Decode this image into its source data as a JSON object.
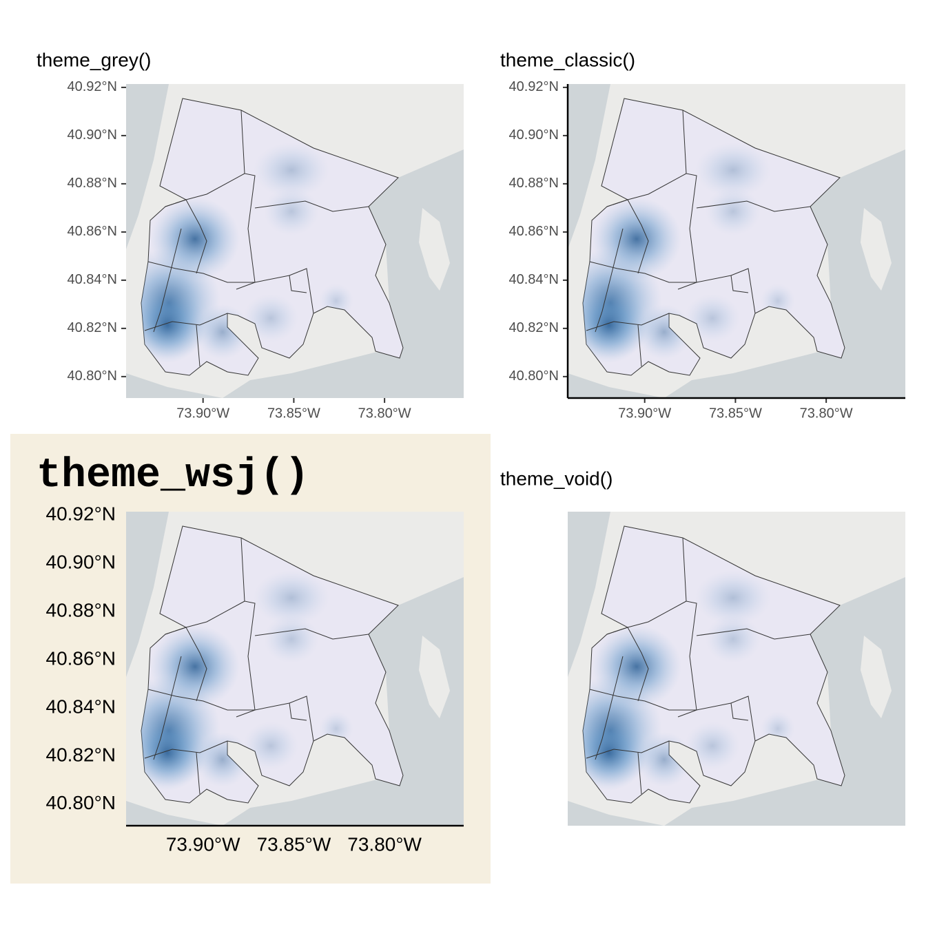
{
  "chart_data": [
    {
      "type": "map",
      "title": "theme_grey()",
      "axis_lines": [],
      "tick_marks": true,
      "xlim": [
        -73.9424,
        -73.7564
      ],
      "ylim": [
        40.7911,
        40.9214
      ],
      "xticks": [
        {
          "value": -73.9,
          "label": "73.90°W"
        },
        {
          "value": -73.85,
          "label": "73.85°W"
        },
        {
          "value": -73.8,
          "label": "73.80°W"
        }
      ],
      "yticks": [
        {
          "value": 40.8,
          "label": "40.80°N"
        },
        {
          "value": 40.82,
          "label": "40.82°N"
        },
        {
          "value": 40.84,
          "label": "40.84°N"
        },
        {
          "value": 40.86,
          "label": "40.86°N"
        },
        {
          "value": 40.88,
          "label": "40.88°N"
        },
        {
          "value": 40.9,
          "label": "40.90°N"
        },
        {
          "value": 40.92,
          "label": "40.92°N"
        }
      ]
    },
    {
      "type": "map",
      "title": "theme_classic()",
      "axis_lines": [
        "left",
        "bottom"
      ],
      "tick_marks": true,
      "xlim": [
        -73.9424,
        -73.7564
      ],
      "ylim": [
        40.7911,
        40.9214
      ],
      "xticks": [
        {
          "value": -73.9,
          "label": "73.90°W"
        },
        {
          "value": -73.85,
          "label": "73.85°W"
        },
        {
          "value": -73.8,
          "label": "73.80°W"
        }
      ],
      "yticks": [
        {
          "value": 40.8,
          "label": "40.80°N"
        },
        {
          "value": 40.82,
          "label": "40.82°N"
        },
        {
          "value": 40.84,
          "label": "40.84°N"
        },
        {
          "value": 40.86,
          "label": "40.86°N"
        },
        {
          "value": 40.88,
          "label": "40.88°N"
        },
        {
          "value": 40.9,
          "label": "40.90°N"
        },
        {
          "value": 40.92,
          "label": "40.92°N"
        }
      ]
    },
    {
      "type": "map",
      "title": "theme_wsj()",
      "axis_lines": [
        "bottom"
      ],
      "tick_marks": false,
      "background": "#f5efe0",
      "xlim": [
        -73.9424,
        -73.7564
      ],
      "ylim": [
        40.7911,
        40.9214
      ],
      "xticks": [
        {
          "value": -73.9,
          "label": "73.90°W"
        },
        {
          "value": -73.85,
          "label": "73.85°W"
        },
        {
          "value": -73.8,
          "label": "73.80°W"
        }
      ],
      "yticks": [
        {
          "value": 40.8,
          "label": "40.80°N"
        },
        {
          "value": 40.82,
          "label": "40.82°N"
        },
        {
          "value": 40.84,
          "label": "40.84°N"
        },
        {
          "value": 40.86,
          "label": "40.86°N"
        },
        {
          "value": 40.88,
          "label": "40.88°N"
        },
        {
          "value": 40.9,
          "label": "40.90°N"
        },
        {
          "value": 40.92,
          "label": "40.92°N"
        }
      ]
    },
    {
      "type": "map",
      "title": "theme_void()",
      "axis_lines": [],
      "tick_marks": false,
      "xlim": [
        -73.9424,
        -73.7564
      ],
      "ylim": [
        40.7911,
        40.9214
      ]
    }
  ]
}
